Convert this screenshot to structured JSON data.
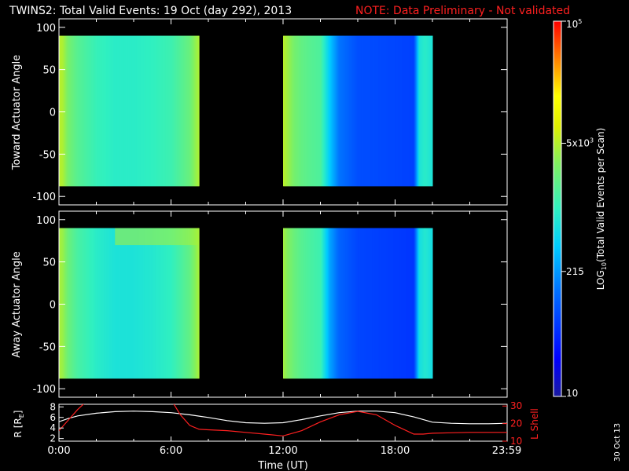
{
  "title": "TWINS2: Total Valid Events: 19 Oct (day 292), 2013",
  "note": "NOTE: Data Preliminary - Not validated",
  "date_stamp": "30 Oct 13",
  "colors": {
    "background": "#000000",
    "note_red": "#ff2020",
    "r_line": "#ffffff",
    "lshell_line": "#ff2020"
  },
  "colorbar": {
    "label": "LOG10(Total Valid Events per Scan)",
    "label_base": "LOG",
    "label_sub": "10",
    "label_rest": "(Total Valid Events per Scan)",
    "ticks": [
      {
        "base": "10",
        "exp": "5",
        "value": 100000
      },
      {
        "base": "5x10",
        "exp": "3",
        "value": 5000
      },
      {
        "base": "215",
        "exp": "",
        "value": 215
      },
      {
        "base": "10",
        "exp": "",
        "value": 10
      }
    ],
    "range": [
      10,
      100000
    ],
    "scale": "log"
  },
  "chart_data": [
    {
      "type": "heatmap",
      "panel": "toward",
      "ylabel": "Toward Actuator Angle",
      "xlim": [
        0,
        24
      ],
      "ylim": [
        -110,
        110
      ],
      "yticks": [
        100,
        50,
        0,
        -50,
        -100
      ],
      "data_y_range": [
        -88,
        90
      ],
      "data_segments": [
        [
          0,
          7.5
        ],
        [
          12,
          20
        ]
      ],
      "x": [
        0.0,
        0.2,
        0.5,
        1.0,
        2.0,
        3.0,
        4.0,
        5.0,
        6.0,
        6.5,
        7.0,
        7.3,
        7.5,
        12.0,
        12.2,
        12.6,
        13.0,
        13.5,
        14.0,
        14.5,
        15.0,
        16.0,
        17.0,
        18.0,
        19.0,
        19.3,
        19.6,
        20.0
      ],
      "values": [
        5200,
        4600,
        2600,
        1700,
        1100,
        900,
        900,
        1000,
        1200,
        1600,
        2200,
        3500,
        4600,
        5200,
        4200,
        2600,
        2000,
        1700,
        1500,
        400,
        140,
        80,
        75,
        70,
        65,
        700,
        900,
        700
      ]
    },
    {
      "type": "heatmap",
      "panel": "away",
      "ylabel": "Away Actuator Angle",
      "xlim": [
        0,
        24
      ],
      "ylim": [
        -110,
        110
      ],
      "yticks": [
        100,
        50,
        0,
        -50,
        -100
      ],
      "data_y_range": [
        -88,
        90
      ],
      "data_segments": [
        [
          0,
          7.5
        ],
        [
          12,
          20
        ]
      ],
      "x": [
        0.0,
        0.2,
        0.5,
        1.0,
        2.0,
        3.0,
        4.0,
        5.0,
        6.0,
        6.5,
        7.0,
        7.3,
        7.5,
        12.0,
        12.2,
        12.6,
        13.0,
        13.5,
        14.0,
        14.5,
        15.0,
        16.0,
        17.0,
        18.0,
        19.0,
        19.3,
        19.6,
        20.0
      ],
      "values": [
        4500,
        3800,
        2200,
        1400,
        900,
        700,
        700,
        800,
        1000,
        1400,
        2000,
        3200,
        4400,
        4200,
        3200,
        2200,
        1700,
        1400,
        1200,
        250,
        110,
        70,
        65,
        60,
        55,
        600,
        800,
        600
      ],
      "hotspot": {
        "x": [
          3.0,
          7.5
        ],
        "y": [
          70,
          90
        ],
        "value": 4500
      }
    },
    {
      "type": "line",
      "panel": "orbit",
      "xlabel": "Time (UT)",
      "xticks": [
        "0:00",
        "6:00",
        "12:00",
        "18:00",
        "23:59"
      ],
      "xtick_values": [
        0,
        6,
        12,
        18,
        23.98
      ],
      "xlim": [
        0,
        24
      ],
      "ylabel_left": "R [RE]",
      "ylabel_left_base": "R [R",
      "ylabel_left_sub": "E",
      "ylabel_left_close": "]",
      "ylim_left": [
        1.5,
        8.5
      ],
      "yticks_left": [
        8,
        6,
        4,
        2
      ],
      "ylabel_right": "L Shell",
      "ylim_right": [
        10,
        31
      ],
      "yticks_right": [
        30,
        20,
        10
      ],
      "series": [
        {
          "name": "R [RE]",
          "axis": "left",
          "color": "#ffffff",
          "x": [
            0,
            0.5,
            1,
            2,
            3,
            4,
            5,
            6,
            7,
            8,
            9,
            10,
            11,
            12,
            13,
            14,
            15,
            16,
            17,
            18,
            19,
            20,
            21,
            22,
            23,
            24
          ],
          "y": [
            5.2,
            5.8,
            6.3,
            6.8,
            7.1,
            7.2,
            7.1,
            6.9,
            6.5,
            6.0,
            5.4,
            5.0,
            4.9,
            5.0,
            5.6,
            6.3,
            6.9,
            7.2,
            7.2,
            6.9,
            6.1,
            5.1,
            4.9,
            4.8,
            4.8,
            4.9
          ]
        },
        {
          "name": "L Shell",
          "axis": "right",
          "color": "#ff2020",
          "segments": [
            {
              "x": [
                0,
                0.5,
                1.0,
                1.4
              ],
              "y": [
                16,
                22,
                28,
                32
              ]
            },
            {
              "x": [
                6.1,
                6.5,
                7.0,
                7.5,
                8,
                9,
                10,
                11,
                12,
                13,
                14,
                15,
                16,
                17,
                18,
                19,
                19.5,
                20,
                21,
                22,
                23,
                24
              ],
              "y": [
                32,
                25,
                19,
                16.8,
                16.5,
                16,
                15,
                14,
                13,
                16,
                21,
                25,
                27,
                25,
                19,
                14,
                14,
                14.5,
                14.8,
                15,
                15,
                15
              ]
            }
          ]
        }
      ]
    }
  ]
}
